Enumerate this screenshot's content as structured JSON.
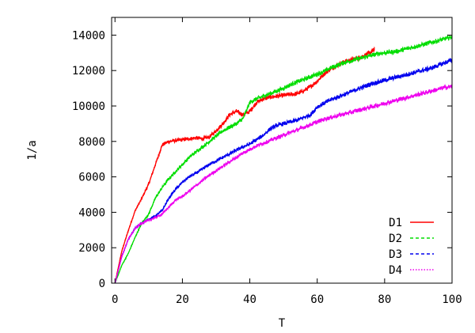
{
  "chart_data": {
    "type": "line",
    "title": "",
    "xlabel": "T",
    "ylabel": "1/a",
    "xlim": [
      -1,
      100
    ],
    "ylim": [
      0,
      15000
    ],
    "xticks": [
      0,
      20,
      40,
      60,
      80,
      100
    ],
    "yticks": [
      0,
      2000,
      4000,
      6000,
      8000,
      10000,
      12000,
      14000
    ],
    "grid": false,
    "legend_position": "bottom-right",
    "series": [
      {
        "name": "D1",
        "color": "#ff0000",
        "style": "solid",
        "x": [
          0,
          2,
          4,
          6,
          8,
          10,
          12,
          14,
          16,
          18,
          20,
          22,
          24,
          26,
          28,
          30,
          32,
          34,
          36,
          38,
          40,
          42,
          44,
          46,
          48,
          50,
          52,
          54,
          56,
          58,
          60,
          62,
          64,
          66,
          68,
          70,
          72,
          74,
          76,
          77
        ],
        "y": [
          0,
          1800,
          3000,
          4100,
          4800,
          5600,
          6700,
          7800,
          8000,
          8050,
          8100,
          8150,
          8200,
          8150,
          8250,
          8600,
          9000,
          9500,
          9700,
          9500,
          9700,
          10200,
          10400,
          10500,
          10550,
          10600,
          10650,
          10700,
          10850,
          11100,
          11400,
          11800,
          12100,
          12300,
          12500,
          12600,
          12700,
          12850,
          13050,
          13200
        ]
      },
      {
        "name": "D2",
        "color": "#00dd00",
        "style": "dashed",
        "x": [
          0,
          2,
          4,
          6,
          8,
          10,
          12,
          14,
          16,
          18,
          20,
          22,
          24,
          26,
          28,
          30,
          32,
          34,
          36,
          38,
          40,
          42,
          44,
          46,
          48,
          50,
          52,
          54,
          56,
          58,
          60,
          62,
          64,
          66,
          68,
          70,
          72,
          74,
          76,
          78,
          80,
          82,
          84,
          86,
          88,
          90,
          92,
          94,
          96,
          98,
          100
        ],
        "y": [
          0,
          1000,
          1700,
          2600,
          3400,
          3900,
          4800,
          5400,
          5900,
          6300,
          6700,
          7100,
          7400,
          7700,
          8000,
          8300,
          8600,
          8800,
          9000,
          9300,
          10200,
          10400,
          10550,
          10700,
          10850,
          11000,
          11200,
          11350,
          11500,
          11650,
          11800,
          11950,
          12150,
          12300,
          12450,
          12550,
          12650,
          12750,
          12850,
          12950,
          13000,
          13050,
          13100,
          13200,
          13300,
          13400,
          13500,
          13600,
          13700,
          13800,
          13900
        ]
      },
      {
        "name": "D3",
        "color": "#0000ee",
        "style": "dashed",
        "x": [
          0,
          2,
          4,
          6,
          8,
          10,
          12,
          14,
          16,
          18,
          20,
          22,
          24,
          26,
          28,
          30,
          32,
          34,
          36,
          38,
          40,
          42,
          44,
          46,
          48,
          50,
          52,
          54,
          56,
          58,
          60,
          62,
          64,
          66,
          68,
          70,
          72,
          74,
          76,
          78,
          80,
          82,
          84,
          86,
          88,
          90,
          92,
          94,
          96,
          98,
          100
        ],
        "y": [
          0,
          1500,
          2500,
          3100,
          3400,
          3600,
          3800,
          4100,
          4800,
          5300,
          5700,
          6000,
          6200,
          6450,
          6700,
          6900,
          7100,
          7300,
          7500,
          7700,
          7850,
          8100,
          8350,
          8700,
          8900,
          9000,
          9100,
          9200,
          9350,
          9500,
          9950,
          10150,
          10350,
          10500,
          10650,
          10800,
          10950,
          11100,
          11250,
          11350,
          11450,
          11550,
          11650,
          11750,
          11850,
          11950,
          12050,
          12150,
          12300,
          12450,
          12600
        ]
      },
      {
        "name": "D4",
        "color": "#ee00ee",
        "style": "dotted",
        "x": [
          0,
          2,
          4,
          6,
          8,
          10,
          12,
          14,
          16,
          18,
          20,
          22,
          24,
          26,
          28,
          30,
          32,
          34,
          36,
          38,
          40,
          42,
          44,
          46,
          48,
          50,
          52,
          54,
          56,
          58,
          60,
          62,
          64,
          66,
          68,
          70,
          72,
          74,
          76,
          78,
          80,
          82,
          84,
          86,
          88,
          90,
          92,
          94,
          96,
          98,
          100
        ],
        "y": [
          0,
          1500,
          2500,
          3100,
          3400,
          3550,
          3700,
          3900,
          4300,
          4700,
          4900,
          5200,
          5500,
          5800,
          6100,
          6350,
          6600,
          6850,
          7100,
          7350,
          7550,
          7750,
          7900,
          8050,
          8200,
          8350,
          8500,
          8650,
          8800,
          8950,
          9100,
          9250,
          9350,
          9450,
          9550,
          9650,
          9750,
          9850,
          9950,
          10050,
          10150,
          10250,
          10350,
          10450,
          10550,
          10650,
          10750,
          10850,
          10950,
          11050,
          11100
        ]
      }
    ]
  }
}
